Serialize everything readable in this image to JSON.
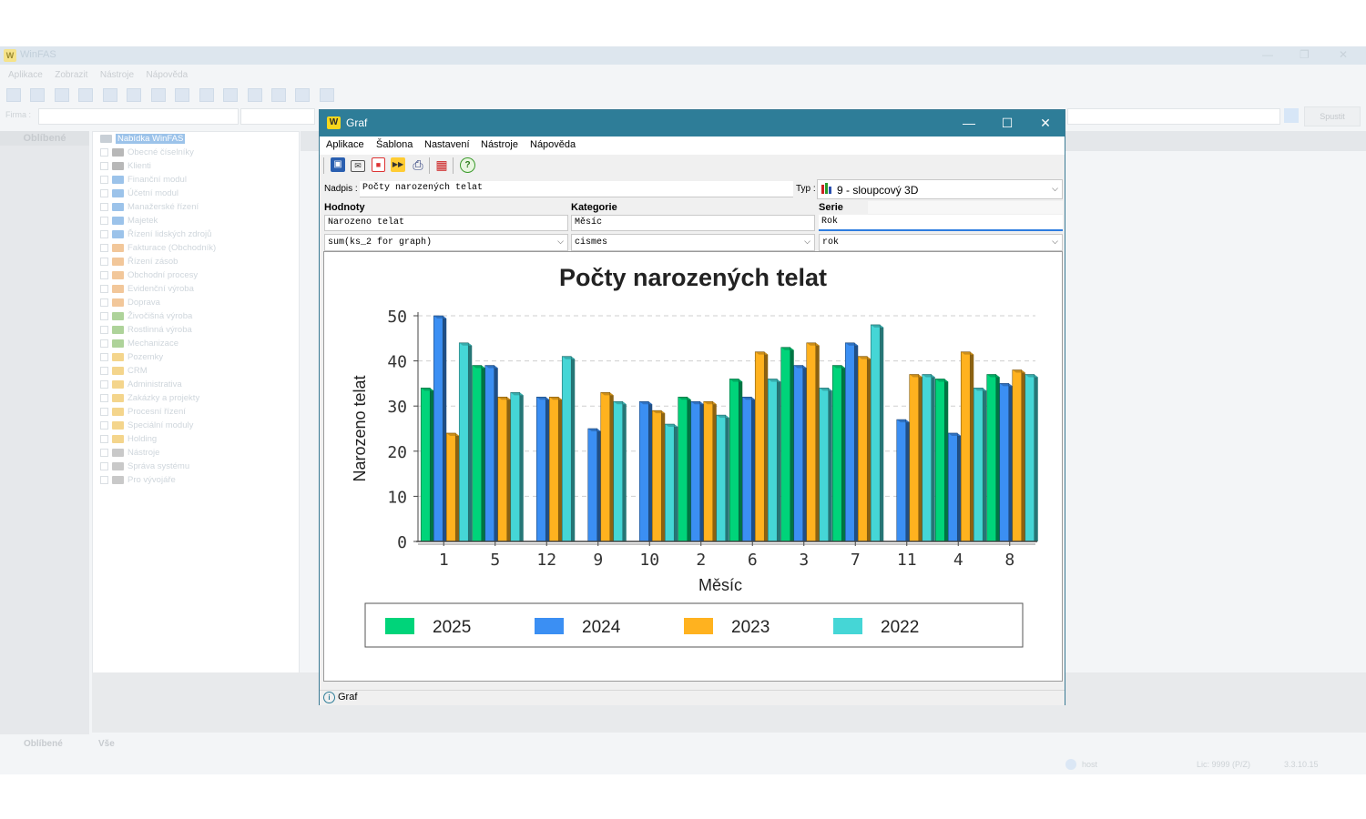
{
  "background_app": {
    "title": "WinFAS",
    "menu": [
      "Aplikace",
      "Zobrazit",
      "Nástroje",
      "Nápověda"
    ],
    "firma_label": "Firma :",
    "run_button": "Spustit",
    "favorites_header": "Oblíbené",
    "tree_root": "Nabídka WinFAS",
    "tree_items": [
      {
        "label": "Obecné číselníky",
        "color": "#b8b8b8"
      },
      {
        "label": "Klienti",
        "color": "#b8b8b8"
      },
      {
        "label": "Finanční modul",
        "color": "#9cc3ea"
      },
      {
        "label": "Účetní modul",
        "color": "#9cc3ea"
      },
      {
        "label": "Manažerské řízení",
        "color": "#9cc3ea"
      },
      {
        "label": "Majetek",
        "color": "#9cc3ea"
      },
      {
        "label": "Řízení lidských zdrojů",
        "color": "#9cc3ea"
      },
      {
        "label": "Fakturace (Obchodník)",
        "color": "#f2c79a"
      },
      {
        "label": "Řízení zásob",
        "color": "#f2c79a"
      },
      {
        "label": "Obchodní procesy",
        "color": "#f2c79a"
      },
      {
        "label": "Evidenční výroba",
        "color": "#f2c79a"
      },
      {
        "label": "Doprava",
        "color": "#f2c79a"
      },
      {
        "label": "Živočišná výroba",
        "color": "#aed39a"
      },
      {
        "label": "Rostlinná výroba",
        "color": "#aed39a"
      },
      {
        "label": "Mechanizace",
        "color": "#aed39a"
      },
      {
        "label": "Pozemky",
        "color": "#f4d58c"
      },
      {
        "label": "CRM",
        "color": "#f4d58c"
      },
      {
        "label": "Administrativa",
        "color": "#f4d58c"
      },
      {
        "label": "Zakázky a projekty",
        "color": "#f4d58c"
      },
      {
        "label": "Procesní řízení",
        "color": "#f4d58c"
      },
      {
        "label": "Speciální moduly",
        "color": "#f4d58c"
      },
      {
        "label": "Holding",
        "color": "#f4d58c"
      },
      {
        "label": "Nástroje",
        "color": "#c9c9c9"
      },
      {
        "label": "Správa systému",
        "color": "#c9c9c9"
      },
      {
        "label": "Pro vývojáře",
        "color": "#c9c9c9"
      }
    ],
    "bottom_tabs": [
      "Oblíbené",
      "Vše"
    ],
    "status": {
      "user": "host",
      "lic": "Lic: 9999 (P/Z)",
      "version": "3.3.10.15"
    }
  },
  "dialog": {
    "title": "Graf",
    "logo": "W",
    "menu": [
      "Aplikace",
      "Šablona",
      "Nastavení",
      "Nástroje",
      "Nápověda"
    ],
    "toolbar_icons": [
      "save-icon",
      "mail-icon",
      "pdf-icon",
      "export-icon",
      "print-icon",
      "grid-icon",
      "help-icon"
    ],
    "nadpis_label": "Nadpis :",
    "nadpis_value": "Počty narozených telat",
    "typ_label": "Typ :",
    "typ_value": "9 - sloupcový 3D",
    "hodnoty_label": "Hodnoty",
    "hodnoty_value": "Narozeno telat",
    "hodnoty_expr": "sum(ks_2 for graph)",
    "kategorie_label": "Kategorie",
    "kategorie_value": "Měsíc",
    "kategorie_expr": "cismes",
    "serie_label": "Serie",
    "serie_value": "Rok",
    "serie_expr": "rok",
    "status_text": "Graf"
  },
  "colors": {
    "titlebar": "#2e7d98",
    "accent": "#2e7d98"
  },
  "chart_data": {
    "type": "bar",
    "title": "Počty narozených telat",
    "xlabel": "Měsíc",
    "ylabel": "Narozeno telat",
    "ylim": [
      0,
      50
    ],
    "yticks": [
      0,
      10,
      20,
      30,
      40,
      50
    ],
    "grid": true,
    "legend": "bottom",
    "categories": [
      "1",
      "5",
      "12",
      "9",
      "10",
      "2",
      "6",
      "3",
      "7",
      "11",
      "4",
      "8"
    ],
    "series": [
      {
        "name": "2025",
        "color": "#00d47a",
        "values": [
          34,
          39,
          0,
          0,
          0,
          32,
          36,
          43,
          39,
          0,
          36,
          37
        ]
      },
      {
        "name": "2024",
        "color": "#3b8ff3",
        "values": [
          50,
          39,
          32,
          25,
          31,
          31,
          32,
          39,
          44,
          27,
          24,
          35
        ]
      },
      {
        "name": "2023",
        "color": "#ffb21f",
        "values": [
          24,
          32,
          32,
          33,
          29,
          31,
          42,
          44,
          41,
          37,
          42,
          38
        ]
      },
      {
        "name": "2022",
        "color": "#45d6d6",
        "values": [
          44,
          33,
          41,
          31,
          26,
          28,
          36,
          34,
          48,
          37,
          34,
          37
        ]
      }
    ]
  }
}
